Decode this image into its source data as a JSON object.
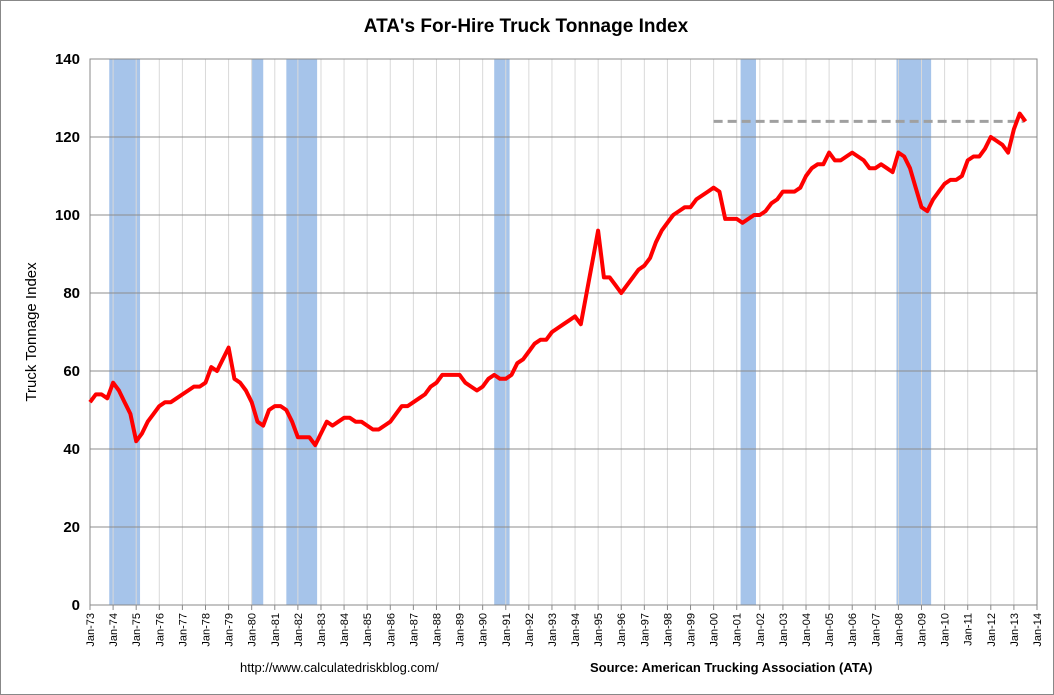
{
  "chart_data": {
    "type": "line",
    "title": "ATA's For-Hire Truck Tonnage Index",
    "y_label": "Truck Tonnage Index",
    "notes": [
      "http://www.calculatedriskblog.com/",
      "Source: American Trucking Association (ATA)"
    ],
    "categories": [
      "Jan-73",
      null,
      null,
      null,
      "Jan-74",
      null,
      null,
      null,
      "Jan-75",
      null,
      null,
      null,
      "Jan-76",
      null,
      null,
      null,
      "Jan-77",
      null,
      null,
      null,
      "Jan-78",
      null,
      null,
      null,
      "Jan-79",
      null,
      null,
      null,
      "Jan-80",
      null,
      null,
      null,
      "Jan-81",
      null,
      null,
      null,
      "Jan-82",
      null,
      null,
      null,
      "Jan-83",
      null,
      null,
      null,
      "Jan-84",
      null,
      null,
      null,
      "Jan-85",
      null,
      null,
      null,
      "Jan-86",
      null,
      null,
      null,
      "Jan-87",
      null,
      null,
      null,
      "Jan-88",
      null,
      null,
      null,
      "Jan-89",
      null,
      null,
      null,
      "Jan-90",
      null,
      null,
      null,
      "Jan-91",
      null,
      null,
      null,
      "Jan-92",
      null,
      null,
      null,
      "Jan-93",
      null,
      null,
      null,
      "Jan-94",
      null,
      null,
      null,
      "Jan-95",
      null,
      null,
      null,
      "Jan-96",
      null,
      null,
      null,
      "Jan-97",
      null,
      null,
      null,
      "Jan-98",
      null,
      null,
      null,
      "Jan-99",
      null,
      null,
      null,
      "Jan-00",
      null,
      null,
      null,
      "Jan-01",
      null,
      null,
      null,
      "Jan-02",
      null,
      null,
      null,
      "Jan-03",
      null,
      null,
      null,
      "Jan-04",
      null,
      null,
      null,
      "Jan-05",
      null,
      null,
      null,
      "Jan-06",
      null,
      null,
      null,
      "Jan-07",
      null,
      null,
      null,
      "Jan-08",
      null,
      null,
      null,
      "Jan-09",
      null,
      null,
      null,
      "Jan-10",
      null,
      null,
      null,
      "Jan-11",
      null,
      null,
      null,
      "Jan-12",
      null,
      null,
      null,
      "Jan-13",
      null,
      null,
      null,
      "Jan-14"
    ],
    "series": [
      {
        "color": "#ff0000",
        "values": [
          52,
          54,
          54,
          53,
          57,
          55,
          52,
          49,
          42,
          44,
          47,
          49,
          51,
          52,
          52,
          53,
          54,
          55,
          56,
          56,
          57,
          61,
          60,
          63,
          66,
          58,
          57,
          55,
          52,
          47,
          46,
          50,
          51,
          51,
          50,
          47,
          43,
          43,
          43,
          41,
          44,
          47,
          46,
          47,
          48,
          48,
          47,
          47,
          46,
          45,
          45,
          46,
          47,
          49,
          51,
          51,
          52,
          53,
          54,
          56,
          57,
          59,
          59,
          59,
          59,
          57,
          56,
          55,
          56,
          58,
          59,
          58,
          58,
          59,
          62,
          63,
          65,
          67,
          68,
          68,
          70,
          71,
          72,
          73,
          74,
          72,
          80,
          88,
          96,
          84,
          84,
          82,
          80,
          82,
          84,
          86,
          87,
          89,
          93,
          96,
          98,
          100,
          101,
          102,
          102,
          104,
          105,
          106,
          107,
          106,
          99,
          99,
          99,
          98,
          99,
          100,
          100,
          101,
          103,
          104,
          106,
          106,
          106,
          107,
          110,
          112,
          113,
          113,
          116,
          114,
          114,
          115,
          116,
          115,
          114,
          112,
          112,
          113,
          112,
          111,
          116,
          115,
          112,
          107,
          102,
          101,
          104,
          106,
          108,
          109,
          109,
          110,
          114,
          115,
          115,
          117,
          120,
          119,
          118,
          116,
          122,
          126,
          124,
          null,
          null
        ]
      }
    ],
    "shaded_periods": [
      {
        "start": "Nov-73",
        "end": "Mar-75"
      },
      {
        "start": "Jan-80",
        "end": "Jul-80"
      },
      {
        "start": "Jul-81",
        "end": "Nov-82"
      },
      {
        "start": "Jul-90",
        "end": "Mar-91"
      },
      {
        "start": "Mar-01",
        "end": "Nov-01"
      },
      {
        "start": "Dec-07",
        "end": "Jun-09"
      }
    ],
    "shade_color": "#a6c4ea",
    "reference_line": {
      "value": 124,
      "start": "Jan-00",
      "end": "Jun-13",
      "color": "#a0a0a0"
    },
    "ylim": [
      0,
      140
    ],
    "yticks": [
      0,
      20,
      40,
      60,
      80,
      100,
      120,
      140
    ],
    "grid": true
  }
}
